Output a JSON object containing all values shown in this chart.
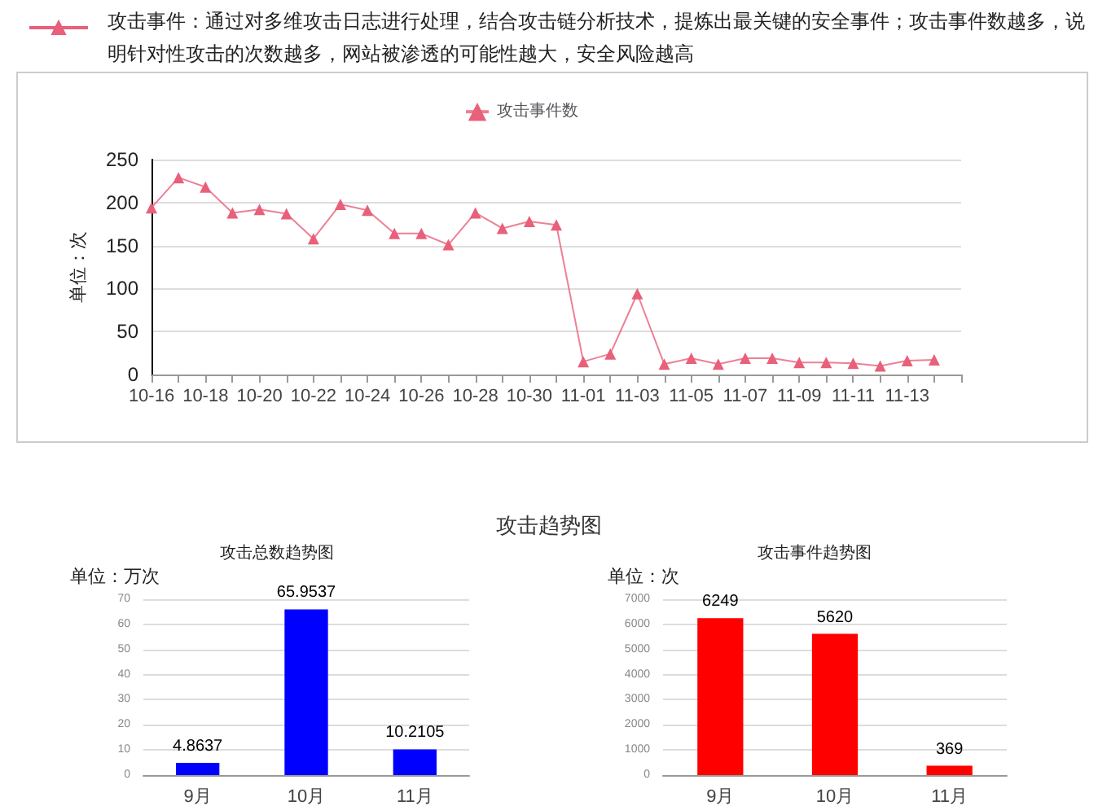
{
  "chart_data": [
    {
      "type": "line",
      "annotations": [
        "攻击事件：通过对多维攻击日志进行处理，结合攻击链分析技术，提炼出最关键的安全事件；攻击事件数越多，说明针对性攻击的次数越多，网站被渗透的可能性越大，安全风险越高"
      ],
      "ylabel": "单位：次",
      "categories": [
        "10-16",
        null,
        "10-18",
        null,
        "10-20",
        null,
        "10-22",
        null,
        "10-24",
        null,
        "10-26",
        null,
        "10-28",
        null,
        "10-30",
        null,
        "11-01",
        null,
        "11-03",
        null,
        "11-05",
        null,
        "11-07",
        null,
        "11-09",
        null,
        "11-11",
        null,
        "11-13",
        null
      ],
      "series": [
        {
          "name": "攻击事件数",
          "color": "#e8607a",
          "values": [
            194,
            229,
            218,
            188,
            192,
            187,
            158,
            198,
            191,
            164,
            164,
            151,
            188,
            170,
            178,
            174,
            15,
            24,
            94,
            12,
            19,
            12,
            19,
            19,
            14,
            14,
            13,
            10,
            16,
            17
          ]
        }
      ],
      "ylim": [
        0,
        250
      ],
      "yticks": [
        0,
        50,
        100,
        150,
        200,
        250
      ],
      "grid": "y",
      "legend": "top",
      "marker": "triangle"
    },
    {
      "type": "bar",
      "title": "攻击总数趋势图",
      "annotations": [
        "攻击趋势图"
      ],
      "ylabel": "单位：万次",
      "categories": [
        "9月",
        "10月",
        "11月"
      ],
      "values": [
        4.8637,
        65.9537,
        10.2105
      ],
      "color": "#0000ff",
      "ylim": [
        0,
        70
      ],
      "yticks": [
        0,
        10,
        20,
        30,
        40,
        50,
        60,
        70
      ],
      "grid": "y",
      "data_labels": true
    },
    {
      "type": "bar",
      "title": "攻击事件趋势图",
      "ylabel": "单位：次",
      "categories": [
        "9月",
        "10月",
        "11月"
      ],
      "values": [
        6249,
        5620,
        369
      ],
      "color": "#ff0000",
      "ylim": [
        0,
        7000
      ],
      "yticks": [
        0,
        1000,
        2000,
        3000,
        4000,
        5000,
        6000,
        7000
      ],
      "grid": "y",
      "data_labels": true
    }
  ]
}
